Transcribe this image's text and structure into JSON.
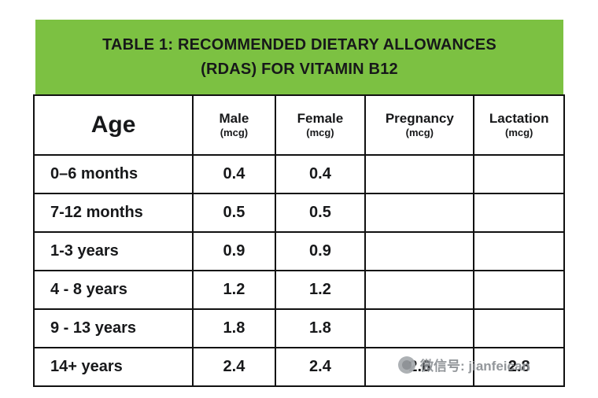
{
  "title": {
    "line1": "TABLE 1: RECOMMENDED DIETARY ALLOWANCES",
    "line2": "(RDAS) FOR VITAMIN B12"
  },
  "chart_data": {
    "type": "table",
    "title": "TABLE 1: RECOMMENDED DIETARY ALLOWANCES (RDAS) FOR VITAMIN B12",
    "columns": [
      {
        "label": "Age",
        "unit": ""
      },
      {
        "label": "Male",
        "unit": "(mcg)"
      },
      {
        "label": "Female",
        "unit": "(mcg)"
      },
      {
        "label": "Pregnancy",
        "unit": "(mcg)"
      },
      {
        "label": "Lactation",
        "unit": "(mcg)"
      }
    ],
    "rows": [
      {
        "cells": [
          "0–6 months",
          "0.4",
          "0.4",
          "",
          ""
        ]
      },
      {
        "cells": [
          "7-12 months",
          "0.5",
          "0.5",
          "",
          ""
        ]
      },
      {
        "cells": [
          "1-3 years",
          "0.9",
          "0.9",
          "",
          ""
        ]
      },
      {
        "cells": [
          "4 - 8 years",
          "1.2",
          "1.2",
          "",
          ""
        ]
      },
      {
        "cells": [
          "9 - 13 years",
          "1.8",
          "1.8",
          "",
          ""
        ]
      },
      {
        "cells": [
          "14+ years",
          "2.4",
          "2.4",
          "2.6",
          "2.8"
        ]
      }
    ]
  },
  "watermark": {
    "text": "微信号: jianfeican"
  },
  "colors": {
    "header_green": "#7cc142",
    "border": "#111111",
    "watermark_gray": "#8e9296"
  }
}
